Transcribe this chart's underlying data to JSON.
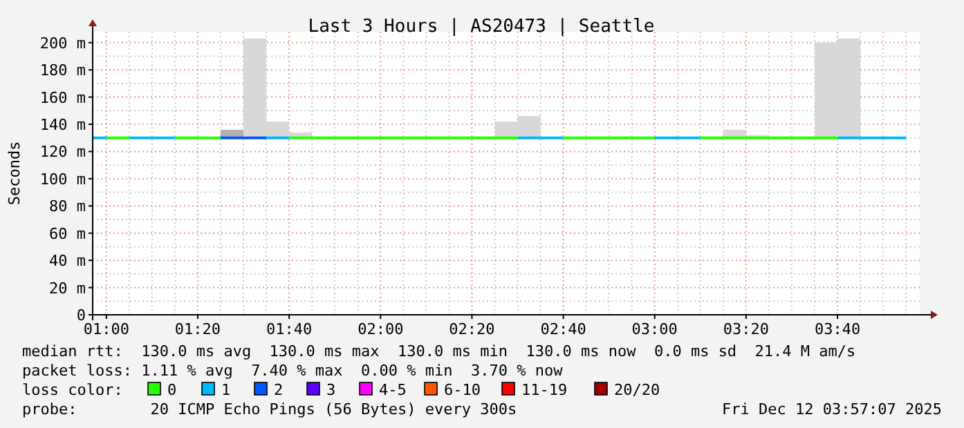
{
  "chart_data": {
    "type": "line",
    "title": "Last 3 Hours | AS20473 | Seattle",
    "ylabel": "Seconds",
    "legend_title": "loss color:",
    "legend": "bottom",
    "grid": true,
    "xlim": [
      0.95,
      3.9667
    ],
    "xticks": [
      {
        "value": 1,
        "label": "01:00"
      },
      {
        "value": 1.3333,
        "label": "01:20"
      },
      {
        "value": 1.6667,
        "label": "01:40"
      },
      {
        "value": 2,
        "label": "02:00"
      },
      {
        "value": 2.3333,
        "label": "02:20"
      },
      {
        "value": 2.6667,
        "label": "02:40"
      },
      {
        "value": 3,
        "label": "03:00"
      },
      {
        "value": 3.3333,
        "label": "03:20"
      },
      {
        "value": 3.6667,
        "label": "03:40"
      }
    ],
    "ylim": [
      0,
      208
    ],
    "yticks": [
      {
        "value": 0,
        "label": "0"
      },
      {
        "value": 20,
        "label": "20 m"
      },
      {
        "value": 40,
        "label": "40 m"
      },
      {
        "value": 60,
        "label": "60 m"
      },
      {
        "value": 80,
        "label": "80 m"
      },
      {
        "value": 100,
        "label": "100 m"
      },
      {
        "value": 120,
        "label": "120 m"
      },
      {
        "value": 140,
        "label": "140 m"
      },
      {
        "value": 160,
        "label": "160 m"
      },
      {
        "value": 180,
        "label": "180 m"
      },
      {
        "value": 200,
        "label": "200 m"
      }
    ],
    "series": [
      {
        "type": "bar",
        "x": [
          1.4583,
          1.5417,
          1.625,
          1.7083,
          2.4583,
          2.5417,
          3.2917,
          3.375,
          3.625,
          3.7083
        ],
        "base": [
          130,
          130,
          130,
          130,
          130,
          130,
          130,
          130,
          130,
          130
        ],
        "values": [
          6,
          73,
          12,
          4,
          12,
          16,
          6,
          2,
          70,
          73
        ],
        "colors": [
          "#b0b0b0",
          "#d8d8d8",
          "#d8d8d8",
          "#d8d8d8",
          "#d8d8d8",
          "#d8d8d8",
          "#d8d8d8",
          "#d8d8d8",
          "#d8d8d8",
          "#d8d8d8"
        ]
      },
      {
        "name": "0",
        "color": "#26ff00",
        "x": [
          1,
          1.0833,
          null,
          1.25,
          1.4167,
          null,
          1.6667,
          2.5,
          null,
          2.6667,
          3,
          null,
          3.1667,
          3.6667
        ],
        "values": [
          130,
          130,
          null,
          130,
          130,
          null,
          130,
          130,
          null,
          130,
          130,
          null,
          130,
          130
        ]
      },
      {
        "name": "1",
        "color": "#00b8ff",
        "x": [
          0.95,
          1,
          null,
          1.0833,
          1.25,
          null,
          1.5833,
          1.6667,
          null,
          2.5,
          2.6667,
          null,
          3,
          3.1667,
          null,
          3.6667,
          3.9167
        ],
        "values": [
          130,
          130,
          null,
          130,
          130,
          null,
          130,
          130,
          null,
          130,
          130,
          null,
          130,
          130,
          null,
          130,
          130
        ]
      },
      {
        "name": "2",
        "color": "#0059ff",
        "x": [
          1.4167,
          1.5833
        ],
        "values": [
          130,
          130
        ]
      },
      {
        "name": "3",
        "color": "#5e00ff"
      },
      {
        "name": "4-5",
        "color": "#ff00ff"
      },
      {
        "name": "6-10",
        "color": "#ff5500"
      },
      {
        "name": "11-19",
        "color": "#ff0000"
      },
      {
        "name": "20/20",
        "color": "#a10000"
      }
    ],
    "annotations": [
      "median rtt:  130.0 ms avg  130.0 ms max  130.0 ms min  130.0 ms now  0.0 ms sd  21.4 M am/s",
      "packet loss: 1.11 % avg  7.40 % max  0.00 % min  3.70 % now",
      "probe:        20 ICMP Echo Pings (56 Bytes) every 300s",
      "Fri Dec 12 03:57:07 2025"
    ]
  }
}
